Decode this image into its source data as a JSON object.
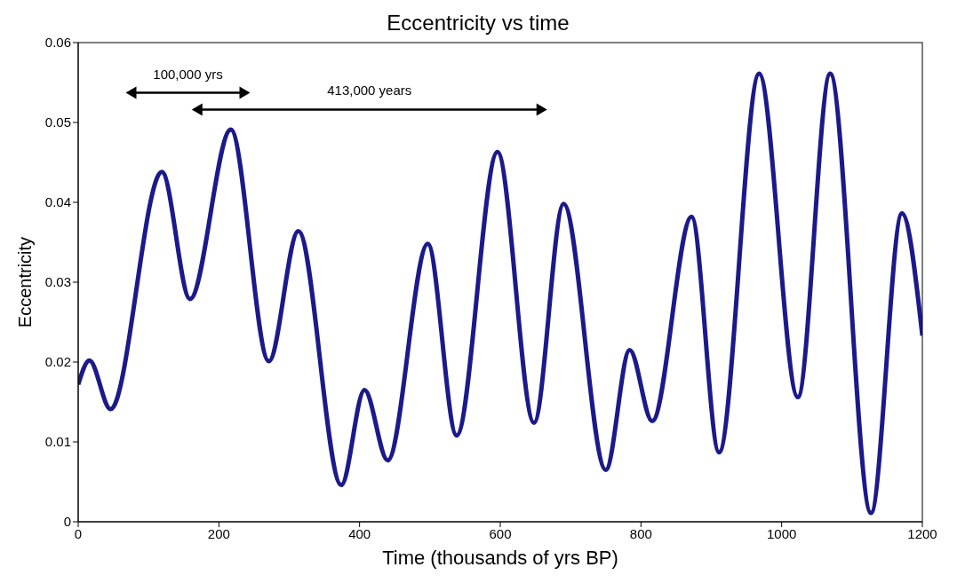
{
  "chart_data": {
    "type": "line",
    "title": "Eccentricity vs time",
    "xlabel": "Time (thousands of yrs BP)",
    "ylabel": "Eccentricity",
    "x": [
      0,
      16,
      46,
      119,
      159,
      217,
      271,
      313,
      374,
      407,
      440,
      497,
      538,
      596,
      648,
      690,
      750,
      784,
      816,
      872,
      911,
      968,
      1023,
      1069,
      1127,
      1171,
      1200
    ],
    "series": [
      {
        "color": "#1c1a8a",
        "values": [
          0.0172,
          0.0202,
          0.0141,
          0.0438,
          0.0279,
          0.0491,
          0.0201,
          0.0364,
          0.0046,
          0.0165,
          0.0077,
          0.0348,
          0.0108,
          0.0463,
          0.0124,
          0.0398,
          0.0065,
          0.0215,
          0.0126,
          0.0382,
          0.0087,
          0.0561,
          0.0156,
          0.0561,
          0.0011,
          0.0386,
          0.0233
        ]
      }
    ],
    "xlim": [
      0,
      1200
    ],
    "xticks": [
      0,
      200,
      400,
      600,
      800,
      1000,
      1200
    ],
    "ylim": [
      0,
      0.06
    ],
    "yticks": [
      0,
      0.01,
      0.02,
      0.03,
      0.04,
      0.05,
      0.06
    ],
    "annotations": [
      "100,000 yrs",
      "413,000 years"
    ],
    "marker": "none",
    "line_style": "solid"
  }
}
